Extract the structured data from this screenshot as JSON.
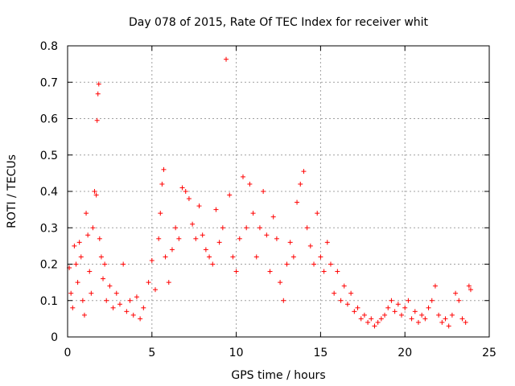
{
  "chart_data": {
    "type": "scatter",
    "title": "Day 078 of 2015, Rate Of TEC Index for receiver whit",
    "xlabel": "GPS time / hours",
    "ylabel": "ROTI / TECUs",
    "xlim": [
      0,
      25
    ],
    "ylim": [
      0,
      0.8
    ],
    "x_ticks": [
      0,
      5,
      10,
      15,
      20,
      25
    ],
    "x_tick_labels": [
      "0",
      "5",
      "10",
      "15",
      "20",
      "25"
    ],
    "y_ticks": [
      0,
      0.1,
      0.2,
      0.3,
      0.4,
      0.5,
      0.6,
      0.7,
      0.8
    ],
    "y_tick_labels": [
      "0",
      "0.1",
      "0.2",
      "0.3",
      "0.4",
      "0.5",
      "0.6",
      "0.7",
      "0.8"
    ],
    "grid": true,
    "marker": "+",
    "color": "#ff0000",
    "series": [
      {
        "points": [
          [
            0.1,
            0.19
          ],
          [
            0.2,
            0.12
          ],
          [
            0.3,
            0.08
          ],
          [
            0.4,
            0.25
          ],
          [
            0.5,
            0.2
          ],
          [
            0.6,
            0.15
          ],
          [
            0.7,
            0.26
          ],
          [
            0.8,
            0.22
          ],
          [
            0.9,
            0.1
          ],
          [
            1.0,
            0.06
          ],
          [
            1.1,
            0.34
          ],
          [
            1.2,
            0.28
          ],
          [
            1.3,
            0.18
          ],
          [
            1.4,
            0.12
          ],
          [
            1.5,
            0.3
          ],
          [
            1.6,
            0.4
          ],
          [
            1.7,
            0.39
          ],
          [
            1.75,
            0.595
          ],
          [
            1.8,
            0.668
          ],
          [
            1.85,
            0.695
          ],
          [
            1.9,
            0.27
          ],
          [
            2.0,
            0.22
          ],
          [
            2.1,
            0.16
          ],
          [
            2.2,
            0.2
          ],
          [
            2.3,
            0.1
          ],
          [
            2.5,
            0.14
          ],
          [
            2.7,
            0.08
          ],
          [
            2.9,
            0.12
          ],
          [
            3.1,
            0.09
          ],
          [
            3.3,
            0.2
          ],
          [
            3.5,
            0.07
          ],
          [
            3.7,
            0.1
          ],
          [
            3.9,
            0.06
          ],
          [
            4.1,
            0.11
          ],
          [
            4.3,
            0.05
          ],
          [
            4.5,
            0.08
          ],
          [
            4.8,
            0.15
          ],
          [
            5.0,
            0.21
          ],
          [
            5.2,
            0.13
          ],
          [
            5.4,
            0.27
          ],
          [
            5.5,
            0.34
          ],
          [
            5.6,
            0.42
          ],
          [
            5.7,
            0.46
          ],
          [
            5.8,
            0.22
          ],
          [
            6.0,
            0.15
          ],
          [
            6.2,
            0.24
          ],
          [
            6.4,
            0.3
          ],
          [
            6.6,
            0.27
          ],
          [
            6.8,
            0.41
          ],
          [
            7.0,
            0.4
          ],
          [
            7.2,
            0.38
          ],
          [
            7.4,
            0.31
          ],
          [
            7.6,
            0.27
          ],
          [
            7.8,
            0.36
          ],
          [
            8.0,
            0.28
          ],
          [
            8.2,
            0.24
          ],
          [
            8.4,
            0.22
          ],
          [
            8.6,
            0.2
          ],
          [
            8.8,
            0.35
          ],
          [
            9.0,
            0.26
          ],
          [
            9.2,
            0.3
          ],
          [
            9.4,
            0.763
          ],
          [
            9.6,
            0.39
          ],
          [
            9.8,
            0.22
          ],
          [
            10.0,
            0.18
          ],
          [
            10.2,
            0.27
          ],
          [
            10.4,
            0.44
          ],
          [
            10.6,
            0.3
          ],
          [
            10.8,
            0.42
          ],
          [
            11.0,
            0.34
          ],
          [
            11.2,
            0.22
          ],
          [
            11.4,
            0.3
          ],
          [
            11.6,
            0.4
          ],
          [
            11.8,
            0.28
          ],
          [
            12.0,
            0.18
          ],
          [
            12.2,
            0.33
          ],
          [
            12.4,
            0.27
          ],
          [
            12.6,
            0.15
          ],
          [
            12.8,
            0.1
          ],
          [
            13.0,
            0.2
          ],
          [
            13.2,
            0.26
          ],
          [
            13.4,
            0.22
          ],
          [
            13.6,
            0.37
          ],
          [
            13.8,
            0.42
          ],
          [
            14.0,
            0.455
          ],
          [
            14.2,
            0.3
          ],
          [
            14.4,
            0.25
          ],
          [
            14.6,
            0.2
          ],
          [
            14.8,
            0.34
          ],
          [
            15.0,
            0.22
          ],
          [
            15.2,
            0.18
          ],
          [
            15.4,
            0.26
          ],
          [
            15.6,
            0.2
          ],
          [
            15.8,
            0.12
          ],
          [
            16.0,
            0.18
          ],
          [
            16.2,
            0.1
          ],
          [
            16.4,
            0.14
          ],
          [
            16.6,
            0.09
          ],
          [
            16.8,
            0.12
          ],
          [
            17.0,
            0.07
          ],
          [
            17.2,
            0.08
          ],
          [
            17.4,
            0.05
          ],
          [
            17.6,
            0.06
          ],
          [
            17.8,
            0.04
          ],
          [
            18.0,
            0.05
          ],
          [
            18.2,
            0.03
          ],
          [
            18.4,
            0.04
          ],
          [
            18.6,
            0.05
          ],
          [
            18.8,
            0.06
          ],
          [
            19.0,
            0.08
          ],
          [
            19.2,
            0.1
          ],
          [
            19.4,
            0.07
          ],
          [
            19.6,
            0.09
          ],
          [
            19.8,
            0.06
          ],
          [
            20.0,
            0.08
          ],
          [
            20.2,
            0.1
          ],
          [
            20.4,
            0.05
          ],
          [
            20.6,
            0.07
          ],
          [
            20.8,
            0.04
          ],
          [
            21.0,
            0.06
          ],
          [
            21.2,
            0.05
          ],
          [
            21.4,
            0.08
          ],
          [
            21.6,
            0.1
          ],
          [
            21.8,
            0.14
          ],
          [
            22.0,
            0.06
          ],
          [
            22.2,
            0.04
          ],
          [
            22.4,
            0.05
          ],
          [
            22.6,
            0.03
          ],
          [
            22.8,
            0.06
          ],
          [
            23.0,
            0.12
          ],
          [
            23.2,
            0.1
          ],
          [
            23.4,
            0.05
          ],
          [
            23.6,
            0.04
          ],
          [
            23.8,
            0.14
          ],
          [
            23.9,
            0.13
          ]
        ]
      }
    ]
  }
}
